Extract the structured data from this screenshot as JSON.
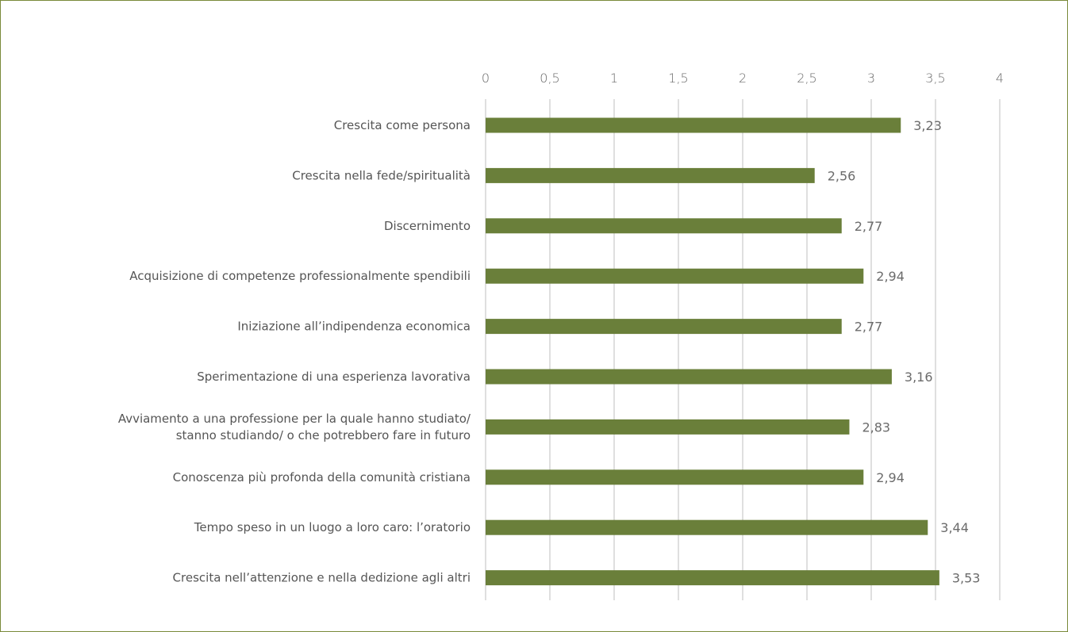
{
  "colors": {
    "bar": "#6a7f3a",
    "grid": "#bfbfbf",
    "border": "#7a8a3a"
  },
  "chart_data": {
    "type": "bar",
    "orientation": "horizontal",
    "title": "",
    "xlabel": "",
    "ylabel": "",
    "xlim": [
      0,
      4
    ],
    "ticks": [
      0,
      0.5,
      1,
      1.5,
      2,
      2.5,
      3,
      3.5,
      4
    ],
    "tick_labels": [
      "0",
      "0,5",
      "1",
      "1,5",
      "2",
      "2,5",
      "3",
      "3,5",
      "4"
    ],
    "grid": true,
    "categories": [
      [
        "Crescita come persona"
      ],
      [
        "Crescita nella fede/spiritualità"
      ],
      [
        "Discernimento"
      ],
      [
        "Acquisizione di competenze professionalmente spendibili"
      ],
      [
        "Iniziazione all’indipendenza economica"
      ],
      [
        "Sperimentazione di una esperienza lavorativa"
      ],
      [
        "Avviamento a una professione per la quale hanno studiato/",
        "stanno studiando/ o che potrebbero fare in futuro"
      ],
      [
        "Conoscenza più profonda della  comunità cristiana"
      ],
      [
        "Tempo speso in un luogo a loro caro: l’oratorio"
      ],
      [
        "Crescita nell’attenzione e nella dedizione agli altri"
      ]
    ],
    "values": [
      3.23,
      2.56,
      2.77,
      2.94,
      2.77,
      3.16,
      2.83,
      2.94,
      3.44,
      3.53
    ],
    "value_labels": [
      "3,23",
      "2,56",
      "2,77",
      "2,94",
      "2,77",
      "3,16",
      "2,83",
      "2,94",
      "3,44",
      "3,53"
    ]
  }
}
